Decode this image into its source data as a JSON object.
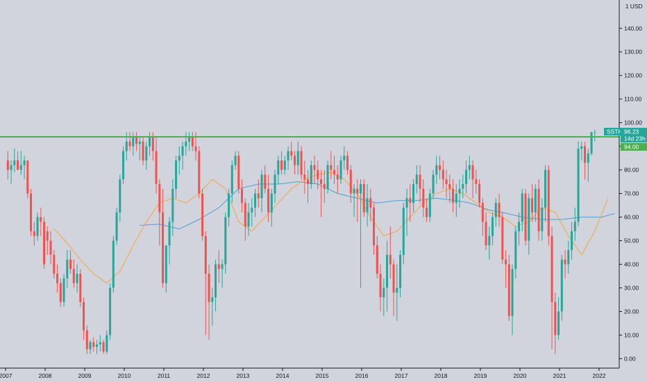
{
  "chart_data": {
    "type": "candlestick",
    "symbol": "SSTH",
    "currency_label": "USD",
    "currency_prefix": "1",
    "last_price": "96.23",
    "countdown": "14d 23h",
    "level_label": "94.00",
    "horizontal_level": 94,
    "ylim": [
      -4,
      152
    ],
    "y_ticks": [
      "0.00",
      "10.00",
      "20.00",
      "30.00",
      "40.00",
      "50.00",
      "60.00",
      "70.00",
      "80.00",
      "90.00",
      "100.00",
      "110.00",
      "120.00",
      "130.00",
      "140.00"
    ],
    "x_ticks": [
      "2007",
      "2008",
      "2009",
      "2010",
      "2011",
      "2012",
      "2013",
      "2014",
      "2015",
      "2016",
      "2017",
      "2018",
      "2019",
      "2020",
      "2021",
      "2022"
    ],
    "colors": {
      "up": "#26a69a",
      "down": "#ef5350",
      "level": "#4caf50",
      "ma_short": "#f7a53c",
      "ma_long": "#4a9fd6",
      "last_tag": "#26a69a",
      "level_tag": "#4caf50"
    },
    "candles_ohlc": [
      [
        84,
        88,
        76,
        80
      ],
      [
        80,
        84,
        74,
        82
      ],
      [
        82,
        89,
        79,
        84
      ],
      [
        84,
        88,
        80,
        80
      ],
      [
        80,
        88,
        78,
        82
      ],
      [
        82,
        86,
        76,
        84
      ],
      [
        84,
        84,
        68,
        70
      ],
      [
        70,
        72,
        52,
        54
      ],
      [
        54,
        58,
        48,
        52
      ],
      [
        52,
        62,
        50,
        60
      ],
      [
        60,
        64,
        52,
        58
      ],
      [
        58,
        60,
        38,
        40
      ],
      [
        54,
        56,
        44,
        50
      ],
      [
        50,
        54,
        40,
        44
      ],
      [
        44,
        46,
        34,
        36
      ],
      [
        36,
        40,
        28,
        32
      ],
      [
        32,
        34,
        22,
        24
      ],
      [
        24,
        36,
        22,
        34
      ],
      [
        34,
        46,
        30,
        42
      ],
      [
        42,
        46,
        36,
        38
      ],
      [
        38,
        42,
        30,
        32
      ],
      [
        32,
        40,
        28,
        36
      ],
      [
        36,
        38,
        22,
        24
      ],
      [
        24,
        26,
        8,
        12
      ],
      [
        12,
        14,
        2,
        4
      ],
      [
        4,
        8,
        2,
        7
      ],
      [
        7,
        9,
        3,
        5
      ],
      [
        5,
        8,
        2,
        6
      ],
      [
        6,
        10,
        3,
        7
      ],
      [
        7,
        8,
        2,
        3
      ],
      [
        3,
        12,
        2,
        10
      ],
      [
        10,
        32,
        8,
        30
      ],
      [
        30,
        52,
        28,
        50
      ],
      [
        50,
        64,
        48,
        62
      ],
      [
        62,
        78,
        58,
        76
      ],
      [
        76,
        90,
        74,
        88
      ],
      [
        88,
        96,
        84,
        92
      ],
      [
        92,
        96,
        88,
        90
      ],
      [
        90,
        96,
        86,
        94
      ],
      [
        94,
        96,
        88,
        91
      ],
      [
        91,
        94,
        84,
        92
      ],
      [
        92,
        94,
        82,
        84
      ],
      [
        84,
        92,
        80,
        90
      ],
      [
        90,
        96,
        86,
        94
      ],
      [
        94,
        96,
        84,
        88
      ],
      [
        88,
        94,
        70,
        74
      ],
      [
        74,
        76,
        48,
        62
      ],
      [
        62,
        72,
        30,
        32
      ],
      [
        32,
        46,
        28,
        48
      ],
      [
        48,
        60,
        40,
        58
      ],
      [
        58,
        76,
        52,
        72
      ],
      [
        72,
        86,
        68,
        84
      ],
      [
        84,
        90,
        78,
        86
      ],
      [
        86,
        92,
        80,
        90
      ],
      [
        90,
        96,
        86,
        92
      ],
      [
        92,
        96,
        88,
        94
      ],
      [
        94,
        96,
        88,
        90
      ],
      [
        90,
        96,
        84,
        88
      ],
      [
        88,
        90,
        68,
        70
      ],
      [
        70,
        72,
        50,
        52
      ],
      [
        52,
        54,
        10,
        36
      ],
      [
        36,
        40,
        8,
        24
      ],
      [
        24,
        30,
        14,
        26
      ],
      [
        26,
        42,
        20,
        40
      ],
      [
        40,
        46,
        32,
        38
      ],
      [
        38,
        42,
        30,
        40
      ],
      [
        40,
        62,
        36,
        60
      ],
      [
        60,
        72,
        56,
        70
      ],
      [
        70,
        84,
        66,
        82
      ],
      [
        82,
        88,
        80,
        86
      ],
      [
        86,
        88,
        70,
        72
      ],
      [
        72,
        76,
        62,
        66
      ],
      [
        66,
        68,
        50,
        56
      ],
      [
        56,
        66,
        52,
        62
      ],
      [
        62,
        68,
        56,
        64
      ],
      [
        64,
        72,
        60,
        70
      ],
      [
        70,
        76,
        64,
        68
      ],
      [
        68,
        80,
        62,
        78
      ],
      [
        78,
        82,
        70,
        72
      ],
      [
        72,
        78,
        58,
        62
      ],
      [
        62,
        72,
        56,
        70
      ],
      [
        70,
        80,
        66,
        78
      ],
      [
        78,
        86,
        74,
        84
      ],
      [
        84,
        88,
        78,
        80
      ],
      [
        80,
        86,
        78,
        84
      ],
      [
        84,
        90,
        80,
        88
      ],
      [
        88,
        92,
        84,
        86
      ],
      [
        86,
        88,
        78,
        82
      ],
      [
        82,
        92,
        78,
        88
      ],
      [
        88,
        90,
        76,
        78
      ],
      [
        78,
        84,
        70,
        76
      ],
      [
        76,
        80,
        66,
        74
      ],
      [
        74,
        84,
        72,
        82
      ],
      [
        82,
        86,
        74,
        80
      ],
      [
        80,
        84,
        72,
        76
      ],
      [
        76,
        80,
        60,
        74
      ],
      [
        74,
        80,
        66,
        72
      ],
      [
        72,
        84,
        70,
        82
      ],
      [
        82,
        88,
        76,
        80
      ],
      [
        80,
        86,
        74,
        78
      ],
      [
        78,
        82,
        70,
        76
      ],
      [
        76,
        86,
        74,
        84
      ],
      [
        84,
        90,
        80,
        86
      ],
      [
        86,
        88,
        78,
        80
      ],
      [
        80,
        82,
        66,
        70
      ],
      [
        70,
        74,
        60,
        72
      ],
      [
        72,
        76,
        58,
        70
      ],
      [
        70,
        76,
        30,
        74
      ],
      [
        74,
        76,
        60,
        62
      ],
      [
        62,
        74,
        56,
        68
      ],
      [
        68,
        72,
        58,
        64
      ],
      [
        64,
        66,
        44,
        48
      ],
      [
        48,
        52,
        34,
        36
      ],
      [
        36,
        40,
        20,
        26
      ],
      [
        26,
        34,
        18,
        30
      ],
      [
        30,
        50,
        20,
        44
      ],
      [
        44,
        56,
        34,
        40
      ],
      [
        40,
        42,
        18,
        28
      ],
      [
        28,
        40,
        16,
        30
      ],
      [
        30,
        46,
        26,
        44
      ],
      [
        44,
        66,
        40,
        64
      ],
      [
        64,
        72,
        52,
        68
      ],
      [
        68,
        74,
        58,
        66
      ],
      [
        66,
        76,
        62,
        74
      ],
      [
        74,
        82,
        70,
        78
      ],
      [
        78,
        82,
        66,
        72
      ],
      [
        72,
        76,
        60,
        64
      ],
      [
        64,
        68,
        58,
        60
      ],
      [
        60,
        72,
        58,
        70
      ],
      [
        70,
        80,
        68,
        78
      ],
      [
        78,
        86,
        74,
        82
      ],
      [
        82,
        86,
        76,
        80
      ],
      [
        80,
        84,
        72,
        76
      ],
      [
        76,
        80,
        68,
        74
      ],
      [
        74,
        78,
        66,
        72
      ],
      [
        72,
        76,
        62,
        66
      ],
      [
        66,
        74,
        60,
        70
      ],
      [
        70,
        76,
        64,
        72
      ],
      [
        72,
        78,
        68,
        74
      ],
      [
        74,
        84,
        70,
        80
      ],
      [
        80,
        86,
        76,
        82
      ],
      [
        82,
        84,
        68,
        76
      ],
      [
        76,
        80,
        70,
        74
      ],
      [
        74,
        76,
        64,
        66
      ],
      [
        66,
        68,
        52,
        58
      ],
      [
        58,
        62,
        46,
        48
      ],
      [
        48,
        56,
        42,
        52
      ],
      [
        52,
        62,
        48,
        60
      ],
      [
        60,
        68,
        56,
        66
      ],
      [
        66,
        70,
        56,
        60
      ],
      [
        60,
        62,
        40,
        42
      ],
      [
        42,
        46,
        30,
        40
      ],
      [
        40,
        44,
        16,
        18
      ],
      [
        18,
        40,
        10,
        38
      ],
      [
        38,
        56,
        34,
        54
      ],
      [
        54,
        62,
        48,
        58
      ],
      [
        58,
        72,
        54,
        70
      ],
      [
        70,
        72,
        48,
        50
      ],
      [
        50,
        70,
        44,
        68
      ],
      [
        68,
        74,
        58,
        62
      ],
      [
        62,
        74,
        58,
        72
      ],
      [
        72,
        76,
        50,
        54
      ],
      [
        54,
        68,
        50,
        64
      ],
      [
        64,
        82,
        58,
        80
      ],
      [
        80,
        82,
        48,
        52
      ],
      [
        52,
        56,
        4,
        24
      ],
      [
        24,
        28,
        2,
        10
      ],
      [
        10,
        26,
        8,
        20
      ],
      [
        20,
        44,
        16,
        42
      ],
      [
        42,
        46,
        34,
        40
      ],
      [
        40,
        50,
        36,
        46
      ],
      [
        46,
        58,
        42,
        54
      ],
      [
        54,
        64,
        50,
        58
      ],
      [
        58,
        92,
        56,
        89
      ],
      [
        89,
        92,
        84,
        90
      ],
      [
        90,
        92,
        76,
        83
      ],
      [
        83,
        89,
        75,
        87
      ],
      [
        87,
        96,
        86,
        96
      ],
      [
        96,
        97,
        92,
        96
      ]
    ],
    "ma_short_points": [
      [
        14,
        55
      ],
      [
        18,
        49
      ],
      [
        22,
        42
      ],
      [
        26,
        36
      ],
      [
        30,
        32
      ],
      [
        34,
        37
      ],
      [
        38,
        48
      ],
      [
        42,
        58
      ],
      [
        46,
        66
      ],
      [
        50,
        68
      ],
      [
        54,
        66
      ],
      [
        58,
        70
      ],
      [
        62,
        76
      ],
      [
        66,
        72
      ],
      [
        70,
        58
      ],
      [
        74,
        54
      ],
      [
        78,
        60
      ],
      [
        82,
        66
      ],
      [
        86,
        72
      ],
      [
        90,
        76
      ],
      [
        94,
        78
      ],
      [
        98,
        79
      ],
      [
        102,
        76
      ],
      [
        106,
        70
      ],
      [
        110,
        60
      ],
      [
        114,
        52
      ],
      [
        118,
        54
      ],
      [
        122,
        60
      ],
      [
        126,
        66
      ],
      [
        130,
        70
      ],
      [
        134,
        72
      ],
      [
        138,
        70
      ],
      [
        142,
        66
      ],
      [
        146,
        62
      ],
      [
        150,
        60
      ],
      [
        154,
        56
      ],
      [
        158,
        58
      ],
      [
        162,
        64
      ],
      [
        166,
        62
      ],
      [
        170,
        52
      ],
      [
        174,
        44
      ],
      [
        178,
        54
      ],
      [
        182,
        68
      ]
    ],
    "ma_long_points": [
      [
        40,
        56.5
      ],
      [
        46,
        57
      ],
      [
        52,
        55
      ],
      [
        58,
        59
      ],
      [
        64,
        64
      ],
      [
        70,
        72
      ],
      [
        76,
        74
      ],
      [
        82,
        74
      ],
      [
        88,
        75
      ],
      [
        94,
        74
      ],
      [
        100,
        70
      ],
      [
        106,
        68
      ],
      [
        112,
        66
      ],
      [
        118,
        67
      ],
      [
        124,
        67
      ],
      [
        130,
        68
      ],
      [
        136,
        67
      ],
      [
        140,
        66
      ],
      [
        146,
        63
      ],
      [
        150,
        62
      ],
      [
        156,
        60
      ],
      [
        162,
        59
      ],
      [
        168,
        59
      ],
      [
        174,
        60
      ],
      [
        180,
        60
      ],
      [
        184,
        61.5
      ]
    ]
  }
}
